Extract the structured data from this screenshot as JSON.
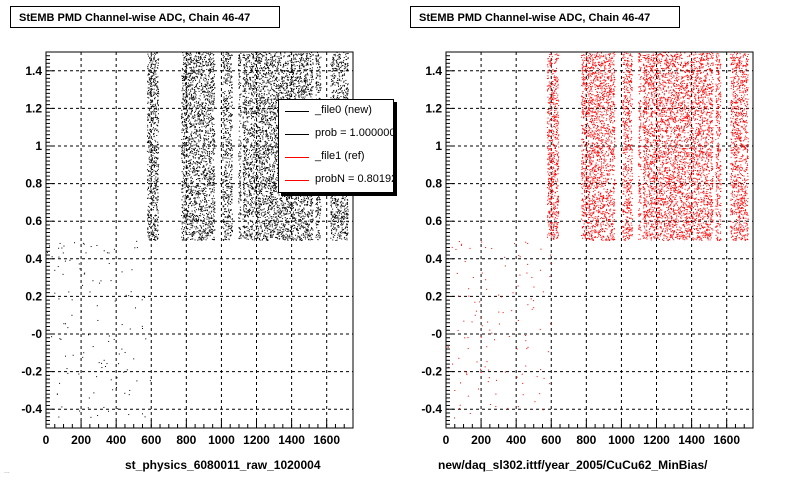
{
  "chart_data": [
    {
      "type": "scatter",
      "title": "StEMB PMD Channel-wise ADC, Chain 46-47",
      "xlabel": "st_physics_6080011_raw_1020004",
      "ylabel": "",
      "xlim": [
        0,
        1750
      ],
      "ylim": [
        -0.5,
        1.5
      ],
      "x_ticks": [
        0,
        200,
        400,
        600,
        800,
        1000,
        1200,
        1400,
        1600
      ],
      "y_ticks": [
        -0.4,
        -0.2,
        0,
        0.2,
        0.4,
        0.6,
        0.8,
        1,
        1.2,
        1.4
      ],
      "y_tick_labels": [
        "-0.4",
        "-0.2",
        "-0",
        "0.2",
        "0.4",
        "0.6",
        "0.8",
        "1",
        "1.2",
        "1.4"
      ],
      "grid": true,
      "series": [
        {
          "name": "_file0 (new)",
          "color": "#000000",
          "dense_bands": [
            [
              575,
              640
            ],
            [
              770,
              960
            ],
            [
              1005,
              1060
            ],
            [
              1095,
              1110
            ],
            [
              1120,
              1520
            ],
            [
              1535,
              1565
            ],
            [
              1620,
              1720
            ]
          ],
          "dense_y_range": [
            0.5,
            1.5
          ],
          "sparse_x_range": [
            0,
            600
          ],
          "sparse_y_range": [
            -0.45,
            0.5
          ]
        }
      ],
      "legend": {
        "placement": "top-right",
        "entries": [
          {
            "label": "_file0 (new)",
            "color": "#000000"
          },
          {
            "label": "prob = 1.000000",
            "color": "#000000"
          },
          {
            "label": "_file1 (ref)",
            "color": "#ff0000"
          },
          {
            "label": "probN = 0.80192",
            "color": "#ff0000"
          }
        ]
      }
    },
    {
      "type": "scatter",
      "title": "StEMB PMD Channel-wise ADC, Chain 46-47",
      "xlabel": "new/daq_sl302.ittf/year_2005/CuCu62_MinBias/",
      "ylabel": "",
      "xlim": [
        0,
        1750
      ],
      "ylim": [
        -0.5,
        1.5
      ],
      "x_ticks": [
        0,
        200,
        400,
        600,
        800,
        1000,
        1200,
        1400,
        1600
      ],
      "y_ticks": [
        -0.4,
        -0.2,
        0,
        0.2,
        0.4,
        0.6,
        0.8,
        1,
        1.2,
        1.4
      ],
      "y_tick_labels": [
        "-0.4",
        "-0.2",
        "-0",
        "0.2",
        "0.4",
        "0.6",
        "0.8",
        "1",
        "1.2",
        "1.4"
      ],
      "grid": true,
      "series": [
        {
          "name": "_file1 (ref)",
          "color": "#ff0000",
          "dense_bands": [
            [
              575,
              640
            ],
            [
              770,
              960
            ],
            [
              1005,
              1060
            ],
            [
              1095,
              1110
            ],
            [
              1120,
              1520
            ],
            [
              1535,
              1565
            ],
            [
              1620,
              1720
            ]
          ],
          "dense_y_range": [
            0.5,
            1.5
          ],
          "sparse_x_range": [
            0,
            600
          ],
          "sparse_y_range": [
            -0.45,
            0.5
          ]
        }
      ]
    }
  ],
  "footer_text": "..."
}
